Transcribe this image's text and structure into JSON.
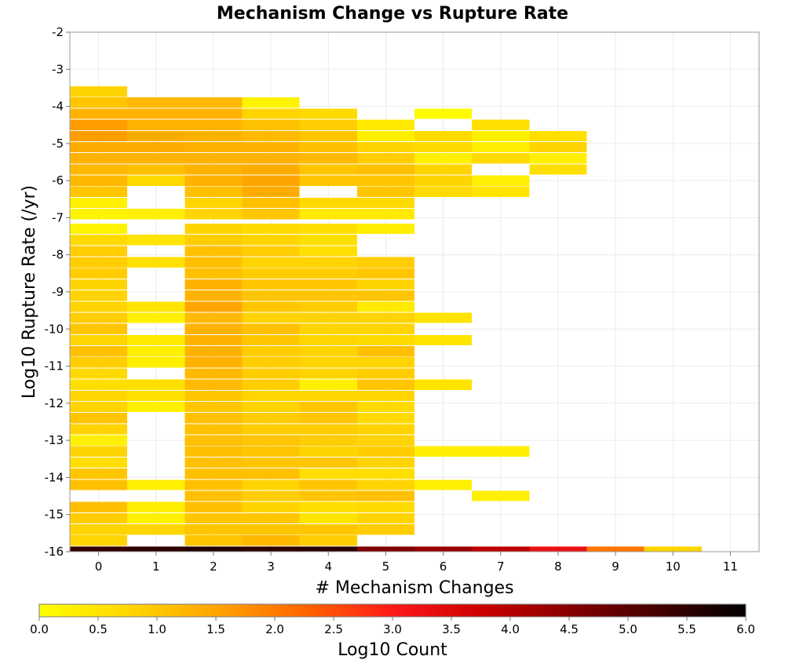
{
  "chart_data": {
    "type": "heatmap",
    "title": "Mechanism Change vs Rupture Rate",
    "xlabel": "# Mechanism Changes",
    "ylabel": "Log10 Rupture Rate (/yr)",
    "xlim": [
      -0.5,
      11.5
    ],
    "ylim": [
      -16,
      -2
    ],
    "x_ticks": [
      0,
      1,
      2,
      3,
      4,
      5,
      6,
      7,
      8,
      9,
      10,
      11
    ],
    "y_ticks": [
      -2,
      -3,
      -4,
      -5,
      -6,
      -7,
      -8,
      -9,
      -10,
      -11,
      -12,
      -13,
      -14,
      -15,
      -16
    ],
    "bin_height": 0.28,
    "grid": true,
    "colorbar": {
      "label": "Log10 Count",
      "min": 0.0,
      "max": 6.0,
      "ticks": [
        "0.0",
        "0.5",
        "1.0",
        "1.5",
        "2.0",
        "2.5",
        "3.0",
        "3.5",
        "4.0",
        "4.5",
        "5.0",
        "5.5",
        "6.0"
      ],
      "colors": [
        "#ffff00",
        "#ffd700",
        "#ffa500",
        "#ff6600",
        "#ff1a1a",
        "#cc0000",
        "#880000",
        "#440000",
        "#000000"
      ]
    },
    "cells": [
      [
        0,
        -3.6,
        0.8
      ],
      [
        0,
        -3.9,
        1.0
      ],
      [
        0,
        -4.2,
        1.3
      ],
      [
        0,
        -4.5,
        1.6
      ],
      [
        0,
        -4.8,
        1.6
      ],
      [
        0,
        -5.1,
        1.4
      ],
      [
        0,
        -5.4,
        1.3
      ],
      [
        0,
        -5.7,
        1.2
      ],
      [
        0,
        -6.0,
        1.2
      ],
      [
        0,
        -6.3,
        1.0
      ],
      [
        0,
        -6.6,
        0.3
      ],
      [
        0,
        -6.9,
        0.2
      ],
      [
        0,
        -7.3,
        0.2
      ],
      [
        0,
        -7.6,
        0.7
      ],
      [
        0,
        -7.9,
        0.9
      ],
      [
        0,
        -8.2,
        0.9
      ],
      [
        0,
        -8.5,
        0.9
      ],
      [
        0,
        -8.8,
        0.8
      ],
      [
        0,
        -9.1,
        0.8
      ],
      [
        0,
        -9.4,
        0.8
      ],
      [
        0,
        -9.7,
        0.9
      ],
      [
        0,
        -10.0,
        1.0
      ],
      [
        0,
        -10.3,
        0.8
      ],
      [
        0,
        -10.6,
        1.1
      ],
      [
        0,
        -10.9,
        0.9
      ],
      [
        0,
        -11.2,
        0.7
      ],
      [
        0,
        -11.5,
        0.6
      ],
      [
        0,
        -11.8,
        0.8
      ],
      [
        0,
        -12.1,
        0.8
      ],
      [
        0,
        -12.4,
        1.0
      ],
      [
        0,
        -12.7,
        0.8
      ],
      [
        0,
        -13.0,
        0.3
      ],
      [
        0,
        -13.3,
        0.8
      ],
      [
        0,
        -13.6,
        0.6
      ],
      [
        0,
        -13.9,
        1.0
      ],
      [
        0,
        -14.2,
        1.1
      ],
      [
        0,
        -14.8,
        1.1
      ],
      [
        0,
        -15.1,
        0.9
      ],
      [
        0,
        -15.4,
        0.8
      ],
      [
        0,
        -15.7,
        0.8
      ],
      [
        0,
        -16.0,
        5.4
      ],
      [
        1,
        -3.9,
        1.2
      ],
      [
        1,
        -4.2,
        1.3
      ],
      [
        1,
        -4.5,
        1.3
      ],
      [
        1,
        -4.8,
        1.4
      ],
      [
        1,
        -5.1,
        1.4
      ],
      [
        1,
        -5.4,
        1.3
      ],
      [
        1,
        -5.7,
        1.1
      ],
      [
        1,
        -6.0,
        0.7
      ],
      [
        1,
        -6.9,
        0.3
      ],
      [
        1,
        -7.6,
        0.5
      ],
      [
        1,
        -8.2,
        0.6
      ],
      [
        1,
        -9.4,
        0.5
      ],
      [
        1,
        -9.7,
        0.3
      ],
      [
        1,
        -10.3,
        0.4
      ],
      [
        1,
        -10.6,
        0.3
      ],
      [
        1,
        -10.9,
        0.3
      ],
      [
        1,
        -11.5,
        0.6
      ],
      [
        1,
        -11.8,
        0.6
      ],
      [
        1,
        -12.1,
        0.3
      ],
      [
        1,
        -14.2,
        0.3
      ],
      [
        1,
        -14.8,
        0.3
      ],
      [
        1,
        -15.1,
        0.3
      ],
      [
        1,
        -15.4,
        0.8
      ],
      [
        1,
        -16.0,
        5.5
      ],
      [
        2,
        -3.9,
        1.2
      ],
      [
        2,
        -4.2,
        1.3
      ],
      [
        2,
        -4.5,
        1.3
      ],
      [
        2,
        -4.8,
        1.3
      ],
      [
        2,
        -5.1,
        1.3
      ],
      [
        2,
        -5.4,
        1.3
      ],
      [
        2,
        -5.7,
        1.3
      ],
      [
        2,
        -6.0,
        1.3
      ],
      [
        2,
        -6.3,
        1.1
      ],
      [
        2,
        -6.6,
        0.8
      ],
      [
        2,
        -6.9,
        0.8
      ],
      [
        2,
        -7.3,
        0.8
      ],
      [
        2,
        -7.6,
        0.9
      ],
      [
        2,
        -7.9,
        1.1
      ],
      [
        2,
        -8.2,
        1.1
      ],
      [
        2,
        -8.5,
        1.1
      ],
      [
        2,
        -8.8,
        1.3
      ],
      [
        2,
        -9.1,
        1.3
      ],
      [
        2,
        -9.4,
        1.5
      ],
      [
        2,
        -9.7,
        1.2
      ],
      [
        2,
        -10.0,
        1.3
      ],
      [
        2,
        -10.3,
        1.3
      ],
      [
        2,
        -10.6,
        1.3
      ],
      [
        2,
        -10.9,
        1.3
      ],
      [
        2,
        -11.2,
        1.2
      ],
      [
        2,
        -11.5,
        1.2
      ],
      [
        2,
        -11.8,
        1.0
      ],
      [
        2,
        -12.1,
        1.0
      ],
      [
        2,
        -12.4,
        1.1
      ],
      [
        2,
        -12.7,
        1.1
      ],
      [
        2,
        -13.0,
        1.1
      ],
      [
        2,
        -13.3,
        1.1
      ],
      [
        2,
        -13.6,
        1.1
      ],
      [
        2,
        -13.9,
        1.1
      ],
      [
        2,
        -14.2,
        1.1
      ],
      [
        2,
        -14.5,
        1.1
      ],
      [
        2,
        -14.8,
        1.1
      ],
      [
        2,
        -15.1,
        1.0
      ],
      [
        2,
        -15.4,
        1.0
      ],
      [
        2,
        -15.7,
        1.0
      ],
      [
        2,
        -16.0,
        5.6
      ],
      [
        3,
        -3.9,
        0.2
      ],
      [
        3,
        -4.2,
        0.8
      ],
      [
        3,
        -4.5,
        1.1
      ],
      [
        3,
        -4.8,
        1.2
      ],
      [
        3,
        -5.1,
        1.3
      ],
      [
        3,
        -5.4,
        1.3
      ],
      [
        3,
        -5.7,
        1.4
      ],
      [
        3,
        -6.0,
        1.5
      ],
      [
        3,
        -6.3,
        1.4
      ],
      [
        3,
        -6.6,
        1.1
      ],
      [
        3,
        -6.9,
        1.0
      ],
      [
        3,
        -7.3,
        0.7
      ],
      [
        3,
        -7.6,
        0.8
      ],
      [
        3,
        -7.9,
        0.9
      ],
      [
        3,
        -8.2,
        0.8
      ],
      [
        3,
        -8.5,
        0.9
      ],
      [
        3,
        -8.8,
        1.0
      ],
      [
        3,
        -9.1,
        1.0
      ],
      [
        3,
        -9.4,
        1.0
      ],
      [
        3,
        -9.7,
        0.8
      ],
      [
        3,
        -10.0,
        1.1
      ],
      [
        3,
        -10.3,
        1.0
      ],
      [
        3,
        -10.6,
        0.9
      ],
      [
        3,
        -10.9,
        0.9
      ],
      [
        3,
        -11.2,
        0.9
      ],
      [
        3,
        -11.5,
        0.9
      ],
      [
        3,
        -11.8,
        0.8
      ],
      [
        3,
        -12.1,
        0.8
      ],
      [
        3,
        -12.4,
        0.9
      ],
      [
        3,
        -12.7,
        0.9
      ],
      [
        3,
        -13.0,
        1.0
      ],
      [
        3,
        -13.3,
        1.0
      ],
      [
        3,
        -13.6,
        1.0
      ],
      [
        3,
        -13.9,
        1.1
      ],
      [
        3,
        -14.2,
        0.8
      ],
      [
        3,
        -14.5,
        0.9
      ],
      [
        3,
        -14.8,
        0.8
      ],
      [
        3,
        -15.1,
        1.0
      ],
      [
        3,
        -15.4,
        1.0
      ],
      [
        3,
        -15.7,
        1.2
      ],
      [
        3,
        -16.0,
        5.5
      ],
      [
        4,
        -4.2,
        0.7
      ],
      [
        4,
        -4.5,
        0.9
      ],
      [
        4,
        -4.8,
        1.0
      ],
      [
        4,
        -5.1,
        1.1
      ],
      [
        4,
        -5.4,
        1.2
      ],
      [
        4,
        -5.7,
        1.0
      ],
      [
        4,
        -6.0,
        1.0
      ],
      [
        4,
        -6.6,
        0.7
      ],
      [
        4,
        -6.9,
        0.4
      ],
      [
        4,
        -7.3,
        0.6
      ],
      [
        4,
        -7.6,
        0.6
      ],
      [
        4,
        -7.9,
        0.6
      ],
      [
        4,
        -8.2,
        0.8
      ],
      [
        4,
        -8.5,
        0.9
      ],
      [
        4,
        -8.8,
        1.0
      ],
      [
        4,
        -9.1,
        1.0
      ],
      [
        4,
        -9.4,
        0.9
      ],
      [
        4,
        -9.7,
        0.8
      ],
      [
        4,
        -10.0,
        0.8
      ],
      [
        4,
        -10.3,
        0.8
      ],
      [
        4,
        -10.6,
        0.8
      ],
      [
        4,
        -10.9,
        0.8
      ],
      [
        4,
        -11.2,
        0.8
      ],
      [
        4,
        -11.5,
        0.3
      ],
      [
        4,
        -11.8,
        0.8
      ],
      [
        4,
        -12.1,
        1.0
      ],
      [
        4,
        -12.4,
        1.0
      ],
      [
        4,
        -12.7,
        0.9
      ],
      [
        4,
        -13.0,
        0.9
      ],
      [
        4,
        -13.3,
        0.8
      ],
      [
        4,
        -13.6,
        1.0
      ],
      [
        4,
        -13.9,
        0.6
      ],
      [
        4,
        -14.2,
        1.0
      ],
      [
        4,
        -14.5,
        1.0
      ],
      [
        4,
        -14.8,
        0.6
      ],
      [
        4,
        -15.1,
        0.5
      ],
      [
        4,
        -15.4,
        1.0
      ],
      [
        4,
        -15.7,
        0.9
      ],
      [
        4,
        -16.0,
        5.5
      ],
      [
        5,
        -4.5,
        0.4
      ],
      [
        5,
        -4.8,
        0.3
      ],
      [
        5,
        -5.1,
        0.8
      ],
      [
        5,
        -5.4,
        0.9
      ],
      [
        5,
        -5.7,
        1.1
      ],
      [
        5,
        -6.0,
        1.0
      ],
      [
        5,
        -6.3,
        1.0
      ],
      [
        5,
        -6.6,
        0.7
      ],
      [
        5,
        -6.9,
        0.4
      ],
      [
        5,
        -7.3,
        0.3
      ],
      [
        5,
        -8.2,
        0.9
      ],
      [
        5,
        -8.5,
        1.0
      ],
      [
        5,
        -8.8,
        0.8
      ],
      [
        5,
        -9.1,
        1.0
      ],
      [
        5,
        -9.4,
        0.4
      ],
      [
        5,
        -9.7,
        0.8
      ],
      [
        5,
        -10.0,
        0.8
      ],
      [
        5,
        -10.3,
        0.7
      ],
      [
        5,
        -10.6,
        1.1
      ],
      [
        5,
        -10.9,
        0.8
      ],
      [
        5,
        -11.2,
        0.9
      ],
      [
        5,
        -11.5,
        1.0
      ],
      [
        5,
        -11.8,
        0.8
      ],
      [
        5,
        -12.1,
        0.7
      ],
      [
        5,
        -12.4,
        0.7
      ],
      [
        5,
        -12.7,
        0.8
      ],
      [
        5,
        -13.0,
        0.8
      ],
      [
        5,
        -13.3,
        0.9
      ],
      [
        5,
        -13.6,
        0.8
      ],
      [
        5,
        -13.9,
        0.6
      ],
      [
        5,
        -14.2,
        0.8
      ],
      [
        5,
        -14.5,
        1.1
      ],
      [
        5,
        -14.8,
        0.7
      ],
      [
        5,
        -15.1,
        0.8
      ],
      [
        5,
        -15.4,
        0.9
      ],
      [
        5,
        -16.0,
        4.6
      ],
      [
        6,
        -4.2,
        0.1
      ],
      [
        6,
        -4.8,
        0.7
      ],
      [
        6,
        -5.1,
        0.7
      ],
      [
        6,
        -5.4,
        0.3
      ],
      [
        6,
        -5.7,
        0.8
      ],
      [
        6,
        -6.0,
        0.8
      ],
      [
        6,
        -6.3,
        0.7
      ],
      [
        6,
        -9.7,
        0.5
      ],
      [
        6,
        -10.3,
        0.5
      ],
      [
        6,
        -11.5,
        0.5
      ],
      [
        6,
        -13.3,
        0.3
      ],
      [
        6,
        -14.2,
        0.3
      ],
      [
        6,
        -16.0,
        4.3
      ],
      [
        7,
        -4.5,
        0.6
      ],
      [
        7,
        -4.8,
        0.3
      ],
      [
        7,
        -5.1,
        0.3
      ],
      [
        7,
        -5.4,
        0.7
      ],
      [
        7,
        -6.0,
        0.3
      ],
      [
        7,
        -6.3,
        0.5
      ],
      [
        7,
        -13.3,
        0.3
      ],
      [
        7,
        -14.5,
        0.3
      ],
      [
        7,
        -16.0,
        3.9
      ],
      [
        8,
        -4.8,
        0.6
      ],
      [
        8,
        -5.1,
        0.8
      ],
      [
        8,
        -5.4,
        0.3
      ],
      [
        8,
        -5.7,
        0.6
      ],
      [
        8,
        -16.0,
        3.3
      ],
      [
        9,
        -16.0,
        2.1
      ],
      [
        10,
        -16.0,
        0.8
      ]
    ]
  }
}
